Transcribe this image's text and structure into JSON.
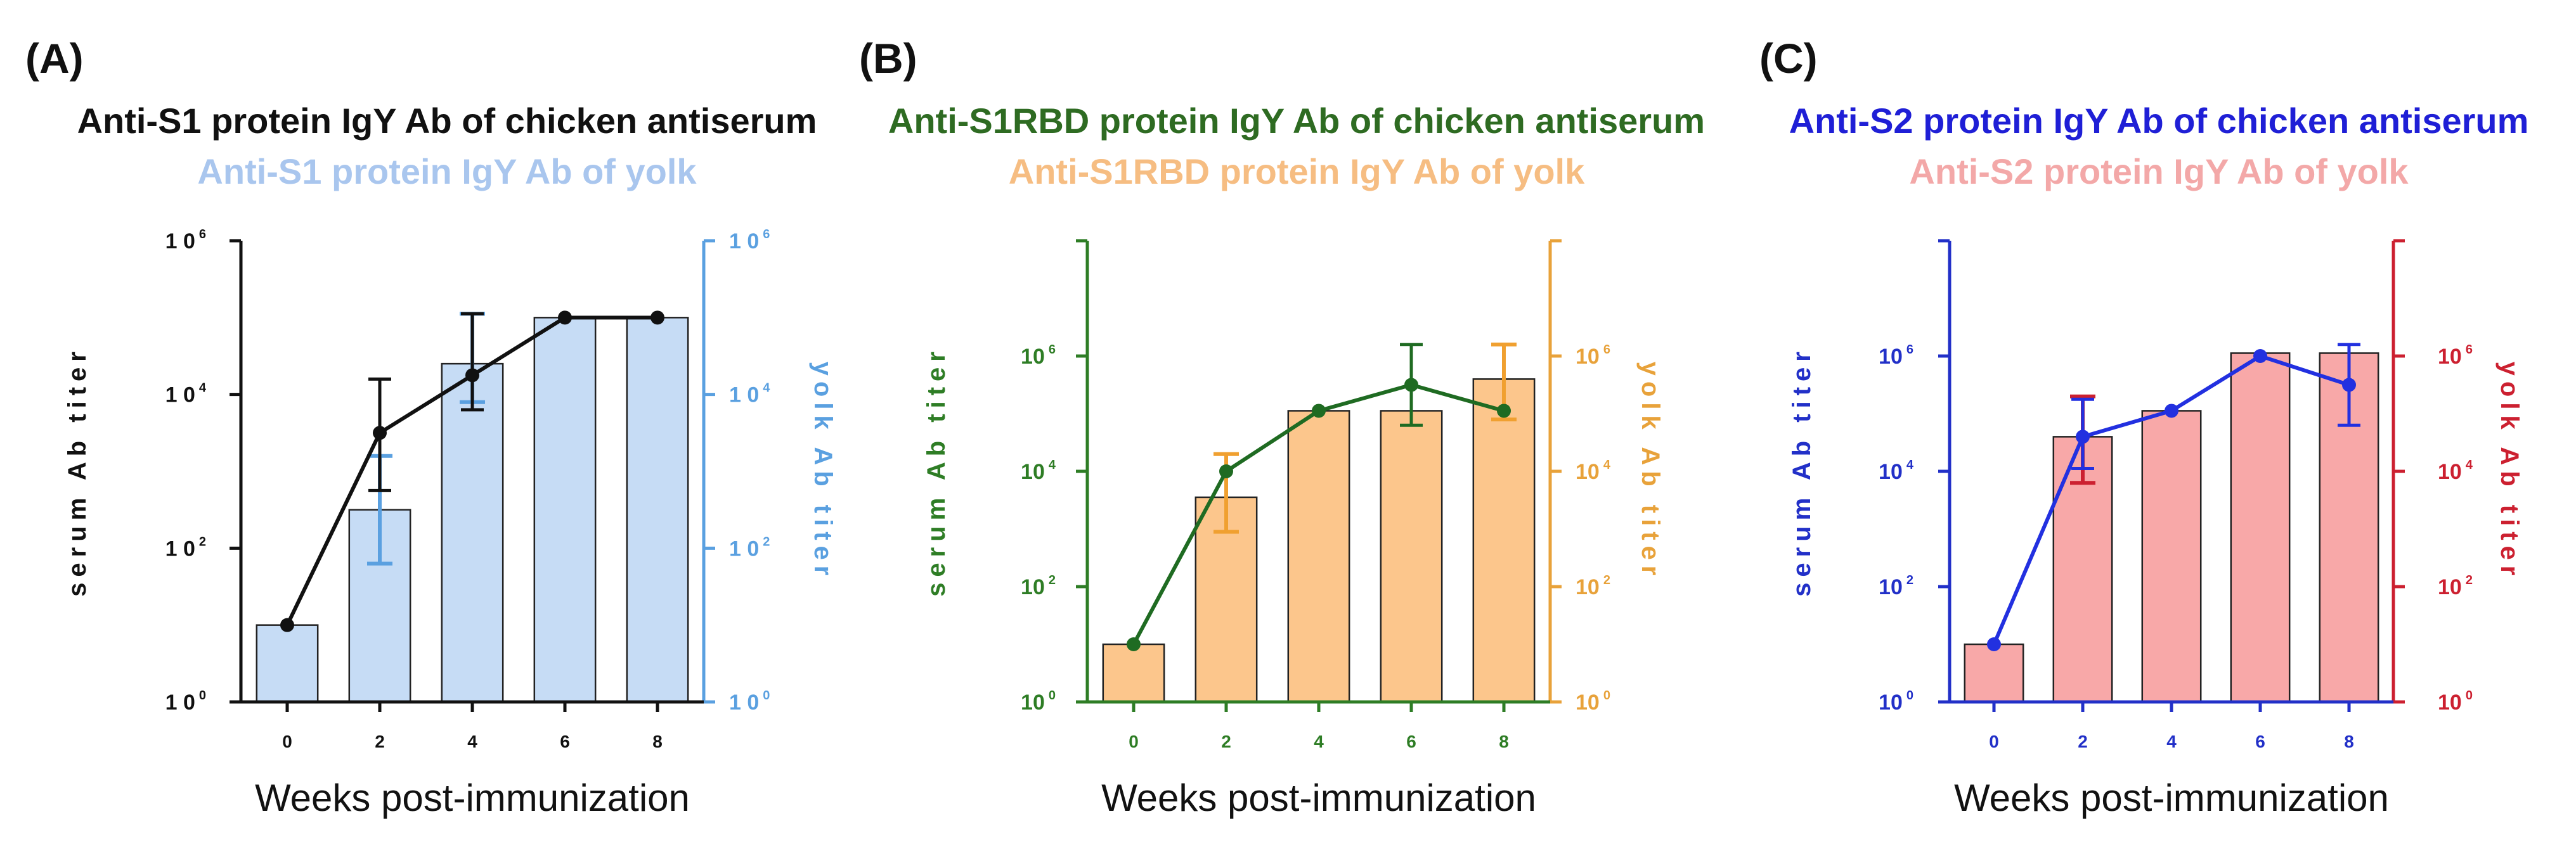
{
  "figure": {
    "x_categories": [
      "0",
      "2",
      "4",
      "6",
      "8"
    ],
    "y_ticks": [
      {
        "base": "10",
        "exp": "0"
      },
      {
        "base": "10",
        "exp": "2"
      },
      {
        "base": "10",
        "exp": "4"
      },
      {
        "base": "10",
        "exp": "6"
      }
    ],
    "y_ticks_panel_a_left": [
      {
        "base": "1 0",
        "exp": "0"
      },
      {
        "base": "1 0",
        "exp": "2"
      },
      {
        "base": "1 0",
        "exp": "4"
      },
      {
        "base": "1 0",
        "exp": "6"
      }
    ],
    "y_ticks_panel_a_right": [
      {
        "base": "1 0",
        "exp": "0"
      },
      {
        "base": "1 0",
        "exp": "2"
      },
      {
        "base": "1 0",
        "exp": "4"
      },
      {
        "base": "1 0",
        "exp": "6"
      }
    ]
  },
  "chart_data": [
    {
      "panel": "(A)",
      "type": "bar+line",
      "title_line1": "Anti-S1 protein IgY Ab of chicken antiserum",
      "title_line2": "Anti-S1 protein IgY Ab of yolk",
      "xlabel": "Weeks post-immunization",
      "ylabel_left": "serum Ab titer",
      "ylabel_right": "yolk Ab titer",
      "yscale": "log10",
      "ylim_log10": [
        0,
        6
      ],
      "categories": [
        0,
        2,
        4,
        6,
        8
      ],
      "bar_series": {
        "name": "yolk",
        "log10_values": [
          1.0,
          2.5,
          4.4,
          5.0,
          5.0
        ],
        "err_low_log10": [
          null,
          1.8,
          3.9,
          null,
          null
        ],
        "err_high_log10": [
          null,
          3.2,
          5.05,
          null,
          null
        ]
      },
      "line_series": {
        "name": "serum",
        "log10_values": [
          1.0,
          3.5,
          4.25,
          5.0,
          5.0
        ],
        "err_low_log10": [
          null,
          2.75,
          3.8,
          null,
          null
        ],
        "err_high_log10": [
          null,
          4.2,
          5.05,
          null,
          null
        ]
      },
      "colors": {
        "title1": "#111111",
        "title2": "#a9c6ee",
        "bar_fill": "#c6dcf5",
        "bar_err": "#5aa0e0",
        "line": "#111111",
        "left_axis": "#111111",
        "right_axis": "#5aa0e0"
      }
    },
    {
      "panel": "(B)",
      "type": "bar+line",
      "title_line1": "Anti-S1RBD protein IgY Ab of chicken antiserum",
      "title_line2": "Anti-S1RBD protein IgY Ab of yolk",
      "xlabel": "Weeks post-immunization",
      "ylabel_left": "serum Ab titer",
      "ylabel_right": "yolk Ab titer",
      "yscale": "log10",
      "ylim_log10": [
        0,
        8
      ],
      "categories": [
        0,
        2,
        4,
        6,
        8
      ],
      "bar_series": {
        "name": "yolk",
        "log10_values": [
          1.0,
          3.55,
          5.05,
          5.05,
          5.6
        ],
        "err_low_log10": [
          null,
          2.95,
          null,
          null,
          4.9
        ],
        "err_high_log10": [
          null,
          4.3,
          null,
          null,
          6.2
        ]
      },
      "line_series": {
        "name": "serum",
        "log10_values": [
          1.0,
          4.0,
          5.05,
          5.5,
          5.05
        ],
        "err_low_log10": [
          null,
          null,
          null,
          4.8,
          null
        ],
        "err_high_log10": [
          null,
          null,
          null,
          6.2,
          null
        ]
      },
      "colors": {
        "title1": "#2e6b22",
        "title2": "#f6bd82",
        "bar_fill": "#fcc68c",
        "bar_err": "#f0a030",
        "line": "#1f6b22",
        "left_axis": "#2e7d25",
        "right_axis": "#e8a23a"
      }
    },
    {
      "panel": "(C)",
      "type": "bar+line",
      "title_line1": "Anti-S2 protein IgY Ab of chicken antiserum",
      "title_line2": "Anti-S2 protein IgY Ab of yolk",
      "xlabel": "Weeks post-immunization",
      "ylabel_left": "serum Ab titer",
      "ylabel_right": "yolk Ab titer",
      "yscale": "log10",
      "ylim_log10": [
        0,
        8
      ],
      "categories": [
        0,
        2,
        4,
        6,
        8
      ],
      "bar_series": {
        "name": "yolk",
        "log10_values": [
          1.0,
          4.6,
          5.05,
          6.05,
          6.05
        ],
        "err_low_log10": [
          null,
          3.8,
          null,
          null,
          null
        ],
        "err_high_log10": [
          null,
          5.3,
          null,
          null,
          null
        ]
      },
      "line_series": {
        "name": "serum",
        "log10_values": [
          1.0,
          4.6,
          5.05,
          6.0,
          5.5
        ],
        "err_low_log10": [
          null,
          4.05,
          null,
          null,
          4.8
        ],
        "err_high_log10": [
          null,
          5.25,
          null,
          null,
          6.2
        ]
      },
      "colors": {
        "title1": "#1f1fd6",
        "title2": "#f3a8a8",
        "bar_fill": "#f8a8a8",
        "bar_err": "#cc2030",
        "line": "#2230e0",
        "left_axis": "#2230c8",
        "right_axis": "#cc2030"
      }
    }
  ]
}
